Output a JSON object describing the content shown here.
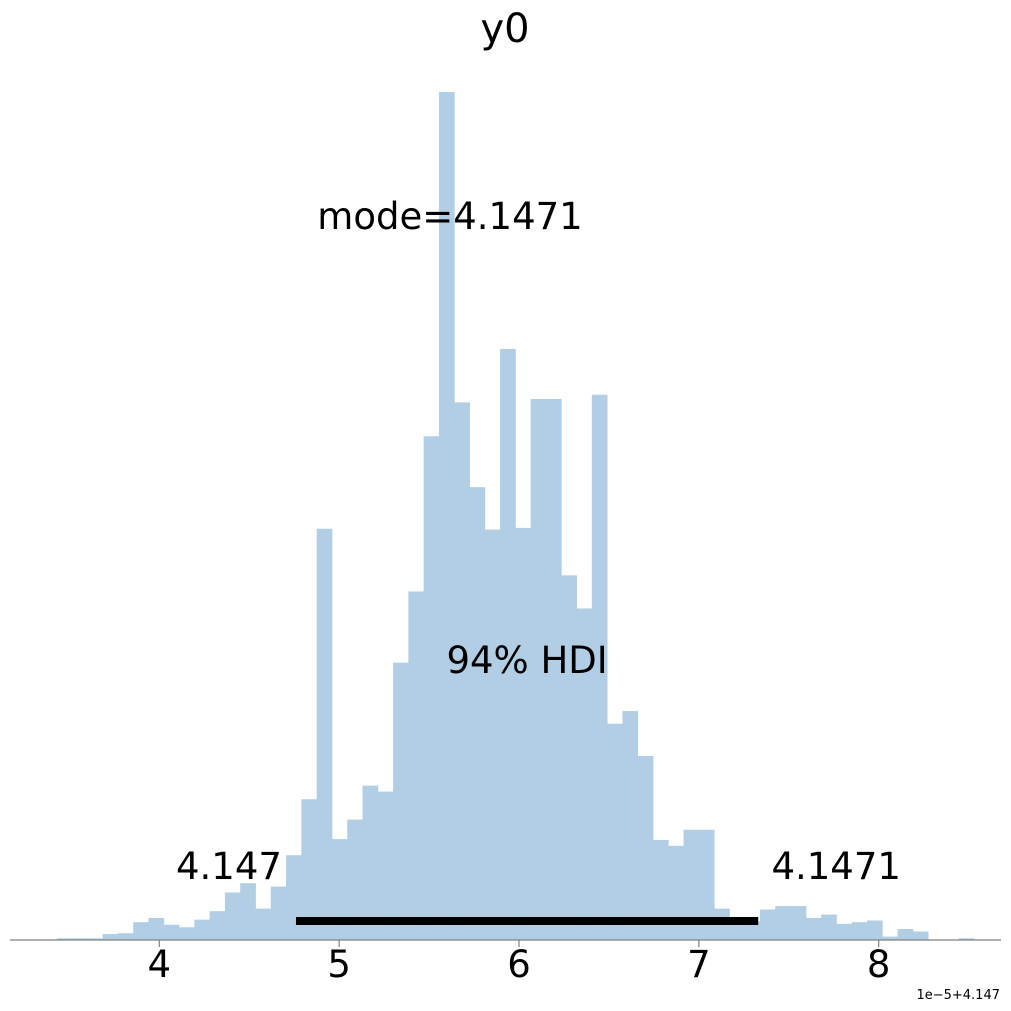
{
  "chart_data": {
    "type": "bar",
    "title": "y0",
    "xlabel": "",
    "ylabel": "",
    "axis_offset_text": "1e−5+4.147",
    "xticks": [
      4,
      5,
      6,
      7,
      8
    ],
    "xtick_labels": [
      "4",
      "5",
      "6",
      "7",
      "8"
    ],
    "xlim": [
      3.17,
      8.68
    ],
    "ylim": [
      0,
      1
    ],
    "grid": false,
    "bar_color": "#b1cee4",
    "hdi_color": "#000000",
    "bin_start": 3.43,
    "bin_width": 0.085,
    "values": [
      0.002,
      0.002,
      0.002,
      0.007,
      0.008,
      0.021,
      0.026,
      0.018,
      0.015,
      0.024,
      0.034,
      0.056,
      0.067,
      0.037,
      0.063,
      0.1,
      0.166,
      0.485,
      0.119,
      0.142,
      0.182,
      0.175,
      0.327,
      0.411,
      0.594,
      1.0,
      0.634,
      0.534,
      0.484,
      0.697,
      0.486,
      0.638,
      0.638,
      0.43,
      0.391,
      0.643,
      0.255,
      0.27,
      0.217,
      0.118,
      0.111,
      0.13,
      0.13,
      0.037,
      0.027,
      0.022,
      0.036,
      0.04,
      0.04,
      0.026,
      0.03,
      0.019,
      0.021,
      0.023,
      0.004,
      0.013,
      0.01,
      0.0,
      0.0,
      0.002
    ],
    "hdi": {
      "lower": 4.76,
      "upper": 7.33,
      "label": "94% HDI",
      "lower_label": "4.147",
      "upper_label": "4.1471"
    },
    "mode_label": "mode=4.1471"
  }
}
